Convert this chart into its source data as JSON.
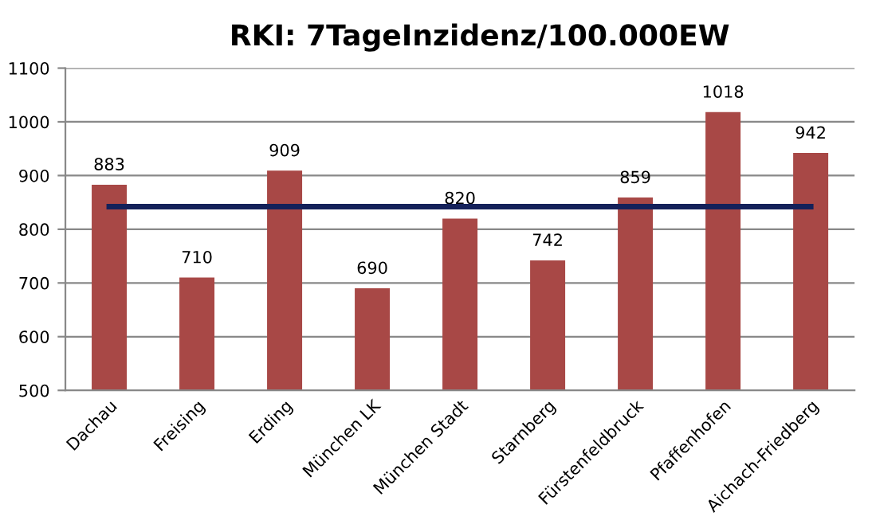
{
  "chart_data": {
    "type": "bar",
    "title": "RKI: 7TageInzidenz/100.000EW",
    "categories": [
      "Dachau",
      "Freising",
      "Erding",
      "München LK",
      "München Stadt",
      "Starnberg",
      "Fürstenfeldbruck",
      "Pfaffenhofen",
      "Aichach-Friedberg"
    ],
    "series": [
      {
        "color": "#a84846",
        "values": [
          883,
          710,
          909,
          690,
          820,
          742,
          859,
          1018,
          942
        ],
        "data_labels": true
      },
      {
        "type": "line",
        "color": "#14215a",
        "values": [
          842,
          842,
          842,
          842,
          842,
          842,
          842,
          842,
          842
        ]
      }
    ],
    "ylim": [
      500,
      1100
    ],
    "yticks": [
      500,
      600,
      700,
      800,
      900,
      1000,
      1100
    ],
    "grid": "y",
    "legend": false,
    "marker": "none",
    "line_style": "solid"
  }
}
